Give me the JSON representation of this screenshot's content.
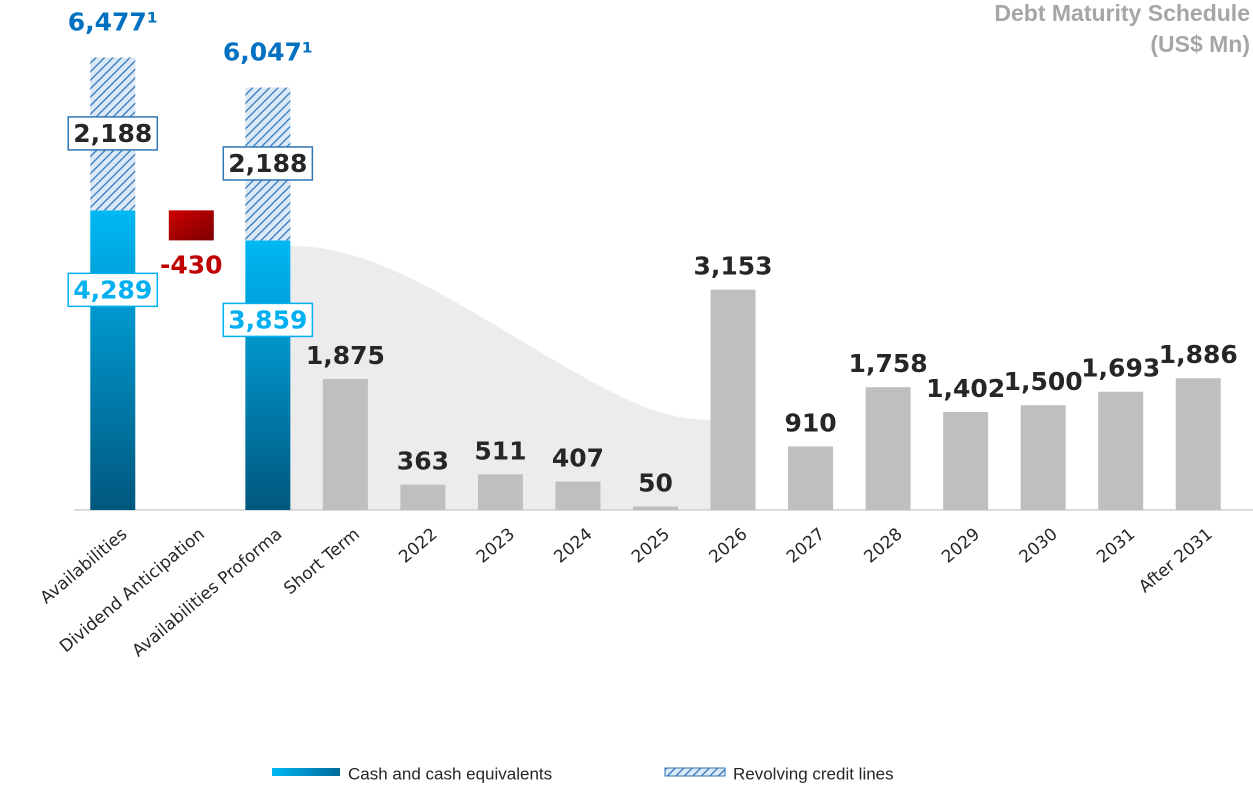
{
  "chart_data": {
    "type": "bar",
    "title": "Debt Maturity Schedule",
    "subtitle": "(US$ Mn)",
    "categories": [
      "Availabilities",
      "Dividend Anticipation",
      "Availabilities Proforma",
      "Short Term",
      "2022",
      "2023",
      "2024",
      "2025",
      "2026",
      "2027",
      "2028",
      "2029",
      "2030",
      "2031",
      "After 2031"
    ],
    "series": [
      {
        "name": "Cash and cash equivalents",
        "color": "#00b0f0",
        "values": [
          4289,
          null,
          3859,
          null,
          null,
          null,
          null,
          null,
          null,
          null,
          null,
          null,
          null,
          null,
          null
        ],
        "value_labels": [
          "4,289",
          null,
          "3,859",
          null,
          null,
          null,
          null,
          null,
          null,
          null,
          null,
          null,
          null,
          null,
          null
        ]
      },
      {
        "name": "Revolving credit lines",
        "color": "#2e75b6",
        "values": [
          2188,
          null,
          2188,
          null,
          null,
          null,
          null,
          null,
          null,
          null,
          null,
          null,
          null,
          null,
          null
        ],
        "value_labels": [
          "2,188",
          null,
          "2,188",
          null,
          null,
          null,
          null,
          null,
          null,
          null,
          null,
          null,
          null,
          null,
          null
        ]
      }
    ],
    "debt_maturity": {
      "color": "#bfbfbf",
      "values": [
        null,
        null,
        null,
        1875,
        363,
        511,
        407,
        50,
        3153,
        910,
        1758,
        1402,
        1500,
        1693,
        1886
      ],
      "value_labels": [
        null,
        null,
        null,
        "1,875",
        "363",
        "511",
        "407",
        "50",
        "3,153",
        "910",
        "1,758",
        "1,402",
        "1,500",
        "1,693",
        "1,886"
      ]
    },
    "change": {
      "category": 1,
      "value": -430,
      "color": "#c00000"
    },
    "totals": {
      "values": [
        6477,
        null,
        6047,
        null,
        null,
        null,
        null,
        null,
        null,
        null,
        null,
        null,
        null,
        null,
        null
      ],
      "value_labels": [
        "6,477¹",
        null,
        "6,047¹",
        null,
        null,
        null,
        null,
        null,
        null,
        null,
        null,
        null,
        null,
        null,
        null
      ],
      "color": "#0070c0"
    },
    "ylim": [
      0,
      7300
    ]
  }
}
